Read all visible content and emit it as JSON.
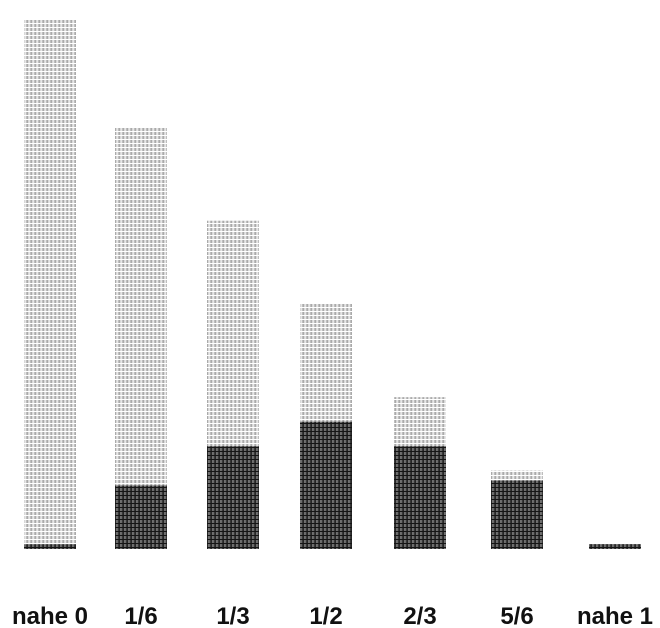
{
  "chart_data": {
    "type": "bar",
    "stacked": true,
    "categories": [
      "nahe 0",
      "1/6",
      "1/3",
      "1/2",
      "2/3",
      "5/6",
      "nahe 1"
    ],
    "series": [
      {
        "values": [
          1,
          13,
          21,
          26,
          21,
          14,
          1
        ],
        "color": "#3a3a3a"
      },
      {
        "values": [
          107,
          73,
          46,
          24,
          10,
          2,
          0
        ],
        "color": "#bdbdbd"
      }
    ],
    "grid": false,
    "legend": "none",
    "title": "",
    "xlabel": "",
    "ylabel": ""
  }
}
